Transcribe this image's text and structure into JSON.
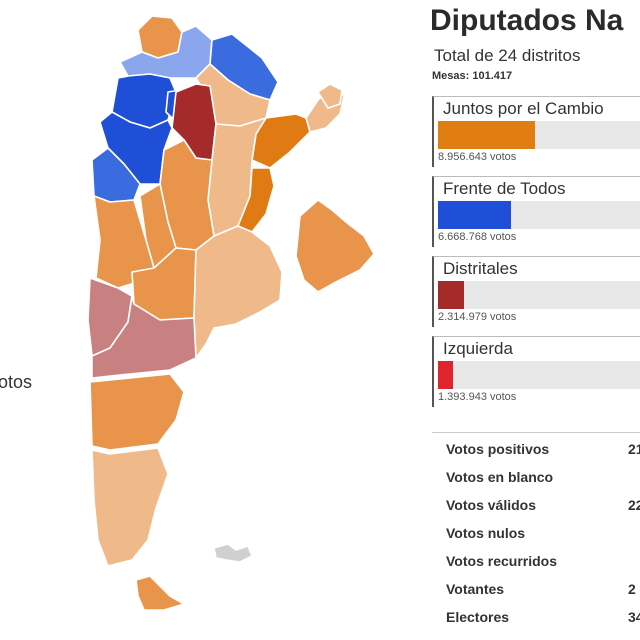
{
  "header": {
    "title": "Diputados Na",
    "subtitle": "Total de 24 distritos",
    "mesas": "Mesas: 101.417"
  },
  "side_text": "otos",
  "parties": [
    {
      "name": "Juntos por el Cambio",
      "votes": "8.956.643 votos",
      "color": "#e07e12",
      "share": 0.45
    },
    {
      "name": "Frente de Todos",
      "votes": "6.668.768 votos",
      "color": "#1f4fd6",
      "share": 0.34
    },
    {
      "name": "Distritales",
      "votes": "2.314.979 votos",
      "color": "#a52a2a",
      "share": 0.12
    },
    {
      "name": "Izquierda",
      "votes": "1.393.943 votos",
      "color": "#e0242d",
      "share": 0.07
    }
  ],
  "summary": [
    {
      "label": "Votos positivos",
      "value": "21"
    },
    {
      "label": "Votos en blanco",
      "value": ""
    },
    {
      "label": "Votos válidos",
      "value": "22"
    },
    {
      "label": "Votos nulos",
      "value": ""
    },
    {
      "label": "Votos recurridos",
      "value": ""
    },
    {
      "label": "Votantes",
      "value": "2"
    },
    {
      "label": "Electores",
      "value": "34"
    }
  ],
  "map": {
    "colors": {
      "jxc_strong": "#e07a12",
      "jxc_mid": "#e8944a",
      "jxc_light": "#efb98a",
      "fdt_strong": "#1f4fd6",
      "fdt_mid": "#3a6ce0",
      "fdt_light": "#8aa6ec",
      "distritales": "#a52a2a",
      "distritales_light": "#c98080",
      "border": "#ffffff"
    }
  }
}
